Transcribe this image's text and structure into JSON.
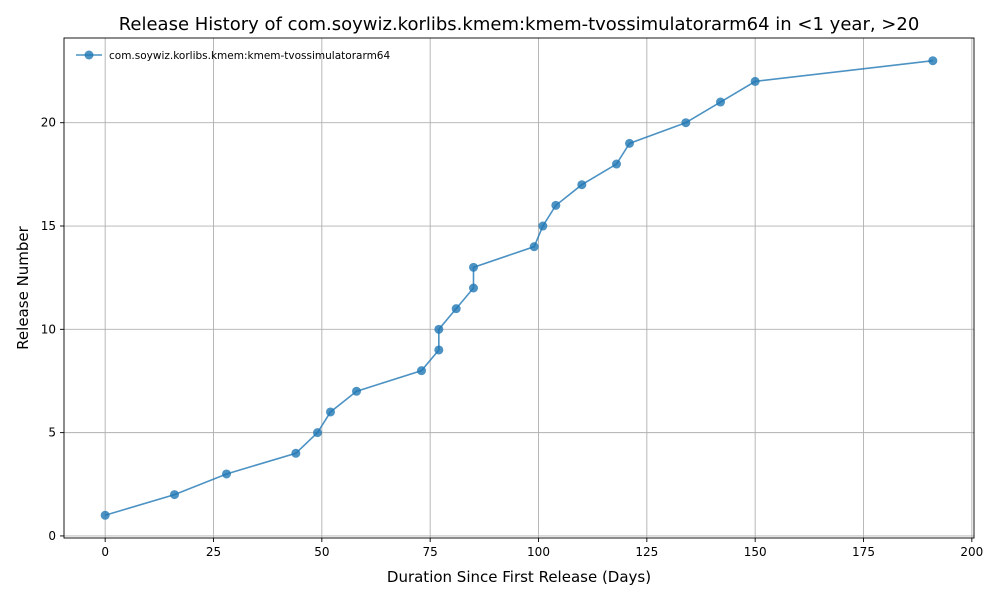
{
  "chart_data": {
    "type": "line",
    "title": "Release History of com.soywiz.korlibs.kmem:kmem-tvossimulatorarm64 in <1 year, >20",
    "xlabel": "Duration Since First Release (Days)",
    "ylabel": "Release Number",
    "xlim": [
      -9.5,
      200.5
    ],
    "ylim": [
      -0.1,
      24.1
    ],
    "xticks": [
      0,
      25,
      50,
      75,
      100,
      125,
      150,
      175,
      200
    ],
    "yticks": [
      0,
      5,
      10,
      15,
      20
    ],
    "grid": true,
    "legend_position": "top-left",
    "series": [
      {
        "name": "com.soywiz.korlibs.kmem:kmem-tvossimulatorarm64",
        "color": "#1f77b4",
        "marker": "circle",
        "x": [
          0,
          16,
          28,
          44,
          49,
          52,
          58,
          73,
          77,
          77,
          81,
          85,
          85,
          99,
          101,
          104,
          110,
          118,
          121,
          134,
          142,
          150,
          191
        ],
        "y": [
          1,
          2,
          3,
          4,
          5,
          6,
          7,
          8,
          9,
          10,
          11,
          12,
          13,
          14,
          15,
          16,
          17,
          18,
          19,
          20,
          21,
          22,
          23
        ]
      }
    ]
  }
}
